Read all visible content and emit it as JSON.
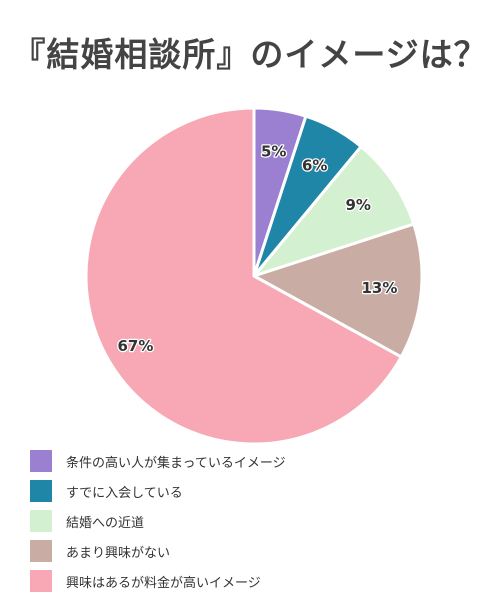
{
  "title": "『結婚相談所』のイメージは？",
  "chart_data": {
    "type": "pie",
    "slices": [
      {
        "label": "条件の高い人が集まっているイメージ",
        "value": 5,
        "value_label": "5%",
        "color": "#9b7fd1"
      },
      {
        "label": "すでに入会している",
        "value": 6,
        "value_label": "6%",
        "color": "#1f86a8"
      },
      {
        "label": "結婚への近道",
        "value": 9,
        "value_label": "9%",
        "color": "#d3f0d0"
      },
      {
        "label": "あまり興味がない",
        "value": 13,
        "value_label": "13%",
        "color": "#c9aca3"
      },
      {
        "label": "興味はあるが料金が高いイメージ",
        "value": 67,
        "value_label": "67%",
        "color": "#f7a8b4"
      }
    ],
    "legend_position": "bottom-left"
  }
}
